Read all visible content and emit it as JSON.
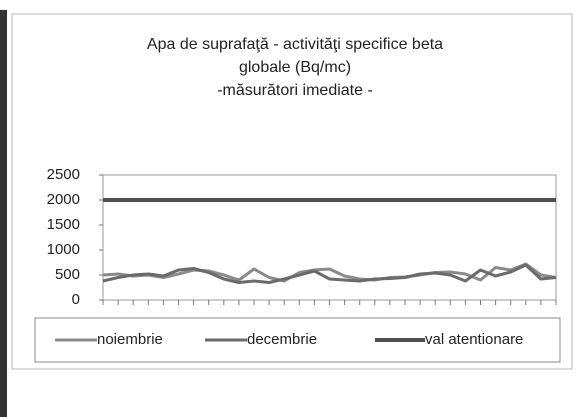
{
  "chart_data": {
    "type": "line",
    "title": [
      "Apa de suprafaţă - activităţi specifice beta",
      "globale (Bq/mc)",
      "-măsurători imediate -"
    ],
    "categories": [
      null,
      null,
      null,
      null,
      null,
      null,
      null,
      null,
      null,
      null,
      null,
      null,
      null,
      null,
      null,
      null,
      null,
      null,
      null,
      null,
      null,
      null,
      null,
      null,
      null,
      null,
      null,
      null,
      null,
      null,
      null
    ],
    "series": [
      {
        "name": "noiembrie",
        "color": "#8a8a8a",
        "values": [
          500,
          520,
          480,
          500,
          450,
          520,
          600,
          580,
          500,
          400,
          620,
          450,
          380,
          550,
          600,
          620,
          480,
          420,
          400,
          450,
          460,
          500,
          550,
          560,
          520,
          400,
          650,
          600,
          720,
          500,
          450
        ]
      },
      {
        "name": "decembrie",
        "color": "#6a6a6a",
        "values": [
          380,
          450,
          500,
          520,
          480,
          600,
          630,
          550,
          420,
          350,
          380,
          350,
          420,
          500,
          580,
          420,
          400,
          380,
          420,
          430,
          450,
          520,
          540,
          500,
          380,
          600,
          480,
          560,
          700,
          420,
          450
        ]
      },
      {
        "name": "val atentionare",
        "color": "#505050",
        "values": [
          2000,
          2000,
          2000,
          2000,
          2000,
          2000,
          2000,
          2000,
          2000,
          2000,
          2000,
          2000,
          2000,
          2000,
          2000,
          2000,
          2000,
          2000,
          2000,
          2000,
          2000,
          2000,
          2000,
          2000,
          2000,
          2000,
          2000,
          2000,
          2000,
          2000,
          2000
        ]
      }
    ],
    "ylim": [
      0,
      2500
    ],
    "yticks": [
      0,
      500,
      1000,
      1500,
      2000,
      2500
    ]
  }
}
